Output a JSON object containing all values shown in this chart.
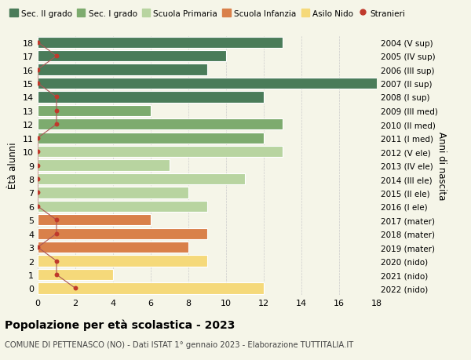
{
  "ages": [
    18,
    17,
    16,
    15,
    14,
    13,
    12,
    11,
    10,
    9,
    8,
    7,
    6,
    5,
    4,
    3,
    2,
    1,
    0
  ],
  "right_labels": [
    "2004 (V sup)",
    "2005 (IV sup)",
    "2006 (III sup)",
    "2007 (II sup)",
    "2008 (I sup)",
    "2009 (III med)",
    "2010 (II med)",
    "2011 (I med)",
    "2012 (V ele)",
    "2013 (IV ele)",
    "2014 (III ele)",
    "2015 (II ele)",
    "2016 (I ele)",
    "2017 (mater)",
    "2018 (mater)",
    "2019 (mater)",
    "2020 (nido)",
    "2021 (nido)",
    "2022 (nido)"
  ],
  "bar_values": [
    13,
    10,
    9,
    19,
    12,
    6,
    13,
    12,
    13,
    7,
    11,
    8,
    9,
    6,
    9,
    8,
    9,
    4,
    12
  ],
  "bar_colors": [
    "#4a7c59",
    "#4a7c59",
    "#4a7c59",
    "#4a7c59",
    "#4a7c59",
    "#7dab6e",
    "#7dab6e",
    "#7dab6e",
    "#b8d4a0",
    "#b8d4a0",
    "#b8d4a0",
    "#b8d4a0",
    "#b8d4a0",
    "#d9804a",
    "#d9804a",
    "#d9804a",
    "#f5d97a",
    "#f5d97a",
    "#f5d97a"
  ],
  "stranieri_values": [
    0,
    1,
    0,
    0,
    1,
    1,
    1,
    0,
    0,
    0,
    0,
    0,
    0,
    1,
    1,
    0,
    1,
    1,
    2
  ],
  "stranieri_color": "#c0392b",
  "stranieri_line_color": "#aa5555",
  "xlim": [
    0,
    18
  ],
  "ylim": [
    -0.5,
    18.5
  ],
  "xticks": [
    0,
    2,
    4,
    6,
    8,
    10,
    12,
    14,
    16,
    18
  ],
  "ylabel": "Ètà alunni",
  "right_ylabel": "Anni di nascita",
  "title": "Popolazione per età scolastica - 2023",
  "subtitle": "COMUNE DI PETTENASCO (NO) - Dati ISTAT 1° gennaio 2023 - Elaborazione TUTTITALIA.IT",
  "legend_entries": [
    {
      "label": "Sec. II grado",
      "color": "#4a7c59"
    },
    {
      "label": "Sec. I grado",
      "color": "#7dab6e"
    },
    {
      "label": "Scuola Primaria",
      "color": "#b8d4a0"
    },
    {
      "label": "Scuola Infanzia",
      "color": "#d9804a"
    },
    {
      "label": "Asilo Nido",
      "color": "#f5d97a"
    }
  ],
  "bg_color": "#f5f5e8",
  "grid_color": "#cccccc",
  "bar_height": 0.82
}
